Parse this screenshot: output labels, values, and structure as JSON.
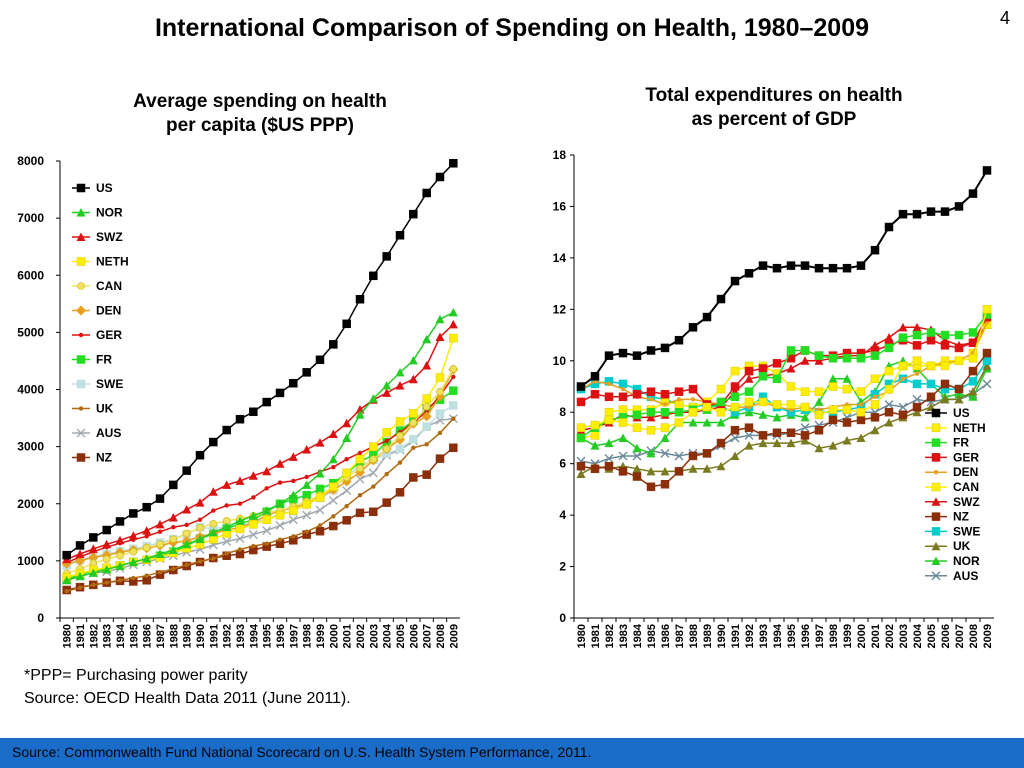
{
  "page": {
    "title": "International Comparison of Spending on Health, 1980–2009",
    "page_number": "4",
    "footnote_ppp": "*PPP= Purchasing power parity",
    "footnote_source": "Source: OECD Health Data 2011 (June 2011).",
    "footer_source": "Source: Commonwealth Fund National Scorecard on U.S. Health System Performance, 2011.",
    "footer_color": "#1a6cc9"
  },
  "chart_data": [
    {
      "type": "line",
      "title_line1": "Average spending on health",
      "title_line2": "per capita ($US PPP)",
      "ylim": [
        0,
        8000
      ],
      "yticks": [
        "0",
        "1000",
        "2000",
        "3000",
        "4000",
        "5000",
        "6000",
        "7000",
        "8000"
      ],
      "ytick_values": [
        0,
        1000,
        2000,
        3000,
        4000,
        5000,
        6000,
        7000,
        8000
      ],
      "categories": [
        "1980",
        "1981",
        "1982",
        "1983",
        "1984",
        "1985",
        "1986",
        "1987",
        "1988",
        "1989",
        "1990",
        "1991",
        "1992",
        "1993",
        "1994",
        "1995",
        "1996",
        "1997",
        "1998",
        "1999",
        "2000",
        "2001",
        "2002",
        "2003",
        "2004",
        "2005",
        "2006",
        "2007",
        "2008",
        "2009"
      ],
      "legend_position": "top-left",
      "series": [
        {
          "name": "US",
          "color": "#000000",
          "marker": "square",
          "values": [
            1100,
            1270,
            1410,
            1540,
            1690,
            1830,
            1940,
            2090,
            2330,
            2580,
            2850,
            3080,
            3290,
            3480,
            3610,
            3780,
            3940,
            4110,
            4300,
            4520,
            4790,
            5150,
            5580,
            5990,
            6330,
            6700,
            7070,
            7440,
            7720,
            7960
          ]
        },
        {
          "name": "NOR",
          "color": "#22cc22",
          "marker": "triangle",
          "values": [
            660,
            730,
            790,
            850,
            910,
            980,
            1040,
            1120,
            1190,
            1290,
            1380,
            1500,
            1590,
            1700,
            1790,
            1880,
            2000,
            2150,
            2330,
            2530,
            2780,
            3150,
            3560,
            3840,
            4070,
            4300,
            4510,
            4880,
            5230,
            5350
          ]
        },
        {
          "name": "SWZ",
          "color": "#dd1111",
          "marker": "triangle",
          "values": [
            1030,
            1120,
            1210,
            1290,
            1360,
            1440,
            1530,
            1640,
            1760,
            1900,
            2020,
            2210,
            2330,
            2400,
            2490,
            2570,
            2700,
            2820,
            2950,
            3070,
            3220,
            3410,
            3650,
            3820,
            3940,
            4070,
            4180,
            4420,
            4920,
            5140
          ]
        },
        {
          "name": "NETH",
          "color": "#ffee00",
          "marker": "square",
          "values": [
            710,
            780,
            840,
            880,
            920,
            980,
            1020,
            1060,
            1140,
            1220,
            1290,
            1380,
            1480,
            1560,
            1640,
            1720,
            1800,
            1880,
            1990,
            2110,
            2300,
            2540,
            2780,
            3000,
            3250,
            3440,
            3580,
            3840,
            4210,
            4900
          ]
        },
        {
          "name": "CAN",
          "color": "#f0e060",
          "marker": "circle",
          "values": [
            780,
            860,
            960,
            1030,
            1090,
            1160,
            1230,
            1290,
            1380,
            1480,
            1580,
            1650,
            1700,
            1740,
            1790,
            1850,
            1880,
            1950,
            2040,
            2150,
            2290,
            2460,
            2620,
            2780,
            2960,
            3190,
            3420,
            3700,
            3960,
            4360
          ]
        },
        {
          "name": "DEN",
          "color": "#e8a020",
          "marker": "diamond",
          "values": [
            950,
            1000,
            1060,
            1100,
            1150,
            1190,
            1220,
            1270,
            1320,
            1350,
            1420,
            1480,
            1540,
            1580,
            1670,
            1800,
            1870,
            1930,
            2000,
            2120,
            2240,
            2390,
            2550,
            2760,
            2960,
            3120,
            3400,
            3530,
            3880,
            4350
          ]
        },
        {
          "name": "GER",
          "color": "#dd1111",
          "marker": "dot",
          "values": [
            970,
            1070,
            1160,
            1240,
            1310,
            1370,
            1430,
            1510,
            1590,
            1630,
            1720,
            1880,
            1970,
            2000,
            2110,
            2270,
            2370,
            2400,
            2470,
            2560,
            2640,
            2780,
            2890,
            3000,
            3100,
            3250,
            3420,
            3620,
            3890,
            4220
          ]
        },
        {
          "name": "FR",
          "color": "#22dd22",
          "marker": "square",
          "values": [
            680,
            760,
            830,
            870,
            920,
            980,
            1020,
            1090,
            1160,
            1260,
            1390,
            1470,
            1560,
            1650,
            1720,
            1860,
            2000,
            2080,
            2150,
            2260,
            2360,
            2530,
            2740,
            2850,
            3080,
            3280,
            3450,
            3670,
            3820,
            3980
          ]
        },
        {
          "name": "SWE",
          "color": "#bfe0e0",
          "marker": "square",
          "values": [
            920,
            1010,
            1080,
            1120,
            1170,
            1210,
            1260,
            1320,
            1380,
            1460,
            1590,
            1560,
            1600,
            1620,
            1680,
            1720,
            1830,
            1870,
            1990,
            2100,
            2240,
            2500,
            2660,
            2770,
            2880,
            2960,
            3130,
            3350,
            3580,
            3720
          ]
        },
        {
          "name": "UK",
          "color": "#b06a10",
          "marker": "dot",
          "values": [
            470,
            530,
            580,
            620,
            660,
            700,
            740,
            800,
            860,
            930,
            990,
            1040,
            1130,
            1200,
            1260,
            1300,
            1370,
            1430,
            1510,
            1620,
            1780,
            1960,
            2150,
            2300,
            2520,
            2720,
            2980,
            3040,
            3240,
            3490
          ]
        },
        {
          "name": "AUS",
          "color": "#a0a8b0",
          "marker": "x",
          "values": [
            660,
            730,
            790,
            810,
            870,
            930,
            980,
            1040,
            1090,
            1150,
            1200,
            1280,
            1340,
            1390,
            1460,
            1530,
            1620,
            1720,
            1800,
            1890,
            2060,
            2230,
            2430,
            2540,
            2850,
            2940,
            3100,
            3350,
            3460,
            3490
          ]
        },
        {
          "name": "NZ",
          "color": "#8b2e0a",
          "marker": "square",
          "values": [
            490,
            540,
            580,
            620,
            650,
            640,
            660,
            760,
            840,
            910,
            980,
            1050,
            1090,
            1120,
            1190,
            1250,
            1300,
            1360,
            1460,
            1520,
            1610,
            1710,
            1840,
            1860,
            2020,
            2200,
            2460,
            2510,
            2790,
            2980
          ]
        }
      ]
    },
    {
      "type": "line",
      "title_line1": "Total expenditures on health",
      "title_line2": "as percent of GDP",
      "ylim": [
        0,
        18
      ],
      "yticks": [
        "0",
        "2",
        "4",
        "6",
        "8",
        "10",
        "12",
        "14",
        "16",
        "18"
      ],
      "ytick_values": [
        0,
        2,
        4,
        6,
        8,
        10,
        12,
        14,
        16,
        18
      ],
      "categories": [
        "1980",
        "1981",
        "1982",
        "1983",
        "1984",
        "1985",
        "1986",
        "1987",
        "1988",
        "1989",
        "1990",
        "1991",
        "1992",
        "1993",
        "1994",
        "1995",
        "1996",
        "1997",
        "1998",
        "1999",
        "2000",
        "2001",
        "2002",
        "2003",
        "2004",
        "2005",
        "2006",
        "2007",
        "2008",
        "2009"
      ],
      "legend_position": "bottom-right",
      "series": [
        {
          "name": "US",
          "color": "#000000",
          "marker": "square",
          "values": [
            9.0,
            9.4,
            10.2,
            10.3,
            10.2,
            10.4,
            10.5,
            10.8,
            11.3,
            11.7,
            12.4,
            13.1,
            13.4,
            13.7,
            13.6,
            13.7,
            13.7,
            13.6,
            13.6,
            13.6,
            13.7,
            14.3,
            15.2,
            15.7,
            15.7,
            15.8,
            15.8,
            16.0,
            16.5,
            17.4
          ]
        },
        {
          "name": "NETH",
          "color": "#ffee00",
          "marker": "square",
          "values": [
            7.4,
            7.5,
            7.7,
            7.6,
            7.4,
            7.3,
            7.4,
            7.6,
            8.0,
            8.2,
            8.0,
            8.2,
            8.4,
            8.4,
            8.3,
            8.3,
            8.2,
            7.9,
            8.1,
            8.1,
            8.0,
            8.3,
            8.9,
            9.8,
            10.0,
            9.8,
            9.8,
            10.0,
            10.1,
            12.0
          ]
        },
        {
          "name": "FR",
          "color": "#22dd22",
          "marker": "square",
          "values": [
            7.0,
            7.4,
            7.7,
            7.8,
            7.9,
            8.0,
            8.0,
            8.0,
            8.1,
            8.1,
            8.4,
            8.6,
            8.8,
            9.4,
            9.3,
            10.4,
            10.4,
            10.2,
            10.1,
            10.1,
            10.1,
            10.2,
            10.5,
            10.9,
            11.0,
            11.1,
            11.0,
            11.0,
            11.1,
            11.8
          ]
        },
        {
          "name": "GER",
          "color": "#dd1111",
          "marker": "square",
          "values": [
            8.4,
            8.7,
            8.6,
            8.6,
            8.7,
            8.8,
            8.7,
            8.8,
            8.9,
            8.3,
            8.3,
            9.0,
            9.6,
            9.7,
            9.9,
            10.1,
            10.4,
            10.2,
            10.2,
            10.3,
            10.3,
            10.4,
            10.6,
            10.8,
            10.6,
            10.8,
            10.6,
            10.5,
            10.7,
            11.7
          ]
        },
        {
          "name": "DEN",
          "color": "#e8a020",
          "marker": "dot",
          "values": [
            8.9,
            9.2,
            9.1,
            8.9,
            8.6,
            8.5,
            8.3,
            8.5,
            8.5,
            8.4,
            8.3,
            8.2,
            8.2,
            8.4,
            8.2,
            8.1,
            8.2,
            8.1,
            8.2,
            8.3,
            8.3,
            8.6,
            8.8,
            9.3,
            9.5,
            9.8,
            9.9,
            10.0,
            10.3,
            11.5
          ]
        },
        {
          "name": "CAN",
          "color": "#ffee00",
          "marker": "square",
          "values": [
            7.0,
            7.1,
            8.0,
            8.1,
            8.1,
            8.1,
            8.4,
            8.3,
            8.2,
            8.4,
            8.9,
            9.6,
            9.8,
            9.8,
            9.5,
            9.0,
            8.8,
            8.8,
            9.0,
            8.9,
            8.8,
            9.3,
            9.6,
            9.8,
            9.8,
            9.8,
            10.0,
            10.0,
            10.3,
            11.4
          ]
        },
        {
          "name": "SWZ",
          "color": "#dd1111",
          "marker": "triangle",
          "values": [
            7.3,
            7.4,
            7.6,
            7.9,
            7.8,
            7.8,
            7.9,
            8.0,
            8.0,
            8.1,
            8.2,
            8.8,
            9.3,
            9.4,
            9.5,
            9.7,
            10.0,
            10.0,
            10.1,
            10.2,
            10.2,
            10.6,
            10.9,
            11.3,
            11.3,
            11.2,
            10.8,
            10.6,
            10.7,
            11.4
          ]
        },
        {
          "name": "NZ",
          "color": "#8b2e0a",
          "marker": "square",
          "values": [
            5.9,
            5.8,
            5.9,
            5.7,
            5.5,
            5.1,
            5.2,
            5.7,
            6.3,
            6.4,
            6.8,
            7.3,
            7.4,
            7.1,
            7.2,
            7.2,
            7.1,
            7.3,
            7.7,
            7.6,
            7.7,
            7.8,
            8.0,
            7.9,
            8.2,
            8.6,
            9.1,
            8.9,
            9.6,
            10.3
          ]
        },
        {
          "name": "SWE",
          "color": "#00cccc",
          "marker": "square",
          "values": [
            8.9,
            9.1,
            9.2,
            9.1,
            8.9,
            8.6,
            8.5,
            8.3,
            8.2,
            8.3,
            8.2,
            8.0,
            8.2,
            8.6,
            8.2,
            8.0,
            8.1,
            8.0,
            8.0,
            8.1,
            8.2,
            8.7,
            9.1,
            9.3,
            9.1,
            9.1,
            8.9,
            8.9,
            9.2,
            10.0
          ]
        },
        {
          "name": "UK",
          "color": "#7a7a20",
          "marker": "triangle",
          "values": [
            5.6,
            5.9,
            5.8,
            5.9,
            5.8,
            5.7,
            5.7,
            5.7,
            5.8,
            5.8,
            5.9,
            6.3,
            6.7,
            6.8,
            6.8,
            6.8,
            6.9,
            6.6,
            6.7,
            6.9,
            7.0,
            7.3,
            7.6,
            7.8,
            8.0,
            8.2,
            8.5,
            8.5,
            8.8,
            9.8
          ]
        },
        {
          "name": "NOR",
          "color": "#22cc22",
          "marker": "triangle",
          "values": [
            7.0,
            6.7,
            6.8,
            7.0,
            6.6,
            6.4,
            7.0,
            7.6,
            7.6,
            7.6,
            7.6,
            7.9,
            8.0,
            7.9,
            7.8,
            7.9,
            7.8,
            8.4,
            9.3,
            9.3,
            8.4,
            8.8,
            9.8,
            10.0,
            9.7,
            9.1,
            8.6,
            8.7,
            8.6,
            9.7
          ]
        },
        {
          "name": "AUS",
          "color": "#6a8a9a",
          "marker": "x",
          "values": [
            6.1,
            6.0,
            6.2,
            6.3,
            6.3,
            6.5,
            6.4,
            6.3,
            6.4,
            6.4,
            6.7,
            7.0,
            7.1,
            7.1,
            7.1,
            7.2,
            7.4,
            7.5,
            7.6,
            7.8,
            8.0,
            8.0,
            8.3,
            8.2,
            8.5,
            8.4,
            8.5,
            8.5,
            8.7,
            9.1
          ]
        }
      ]
    }
  ]
}
